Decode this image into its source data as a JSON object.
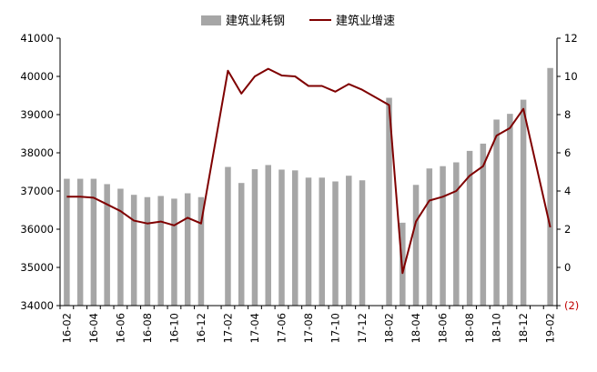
{
  "chart_data": {
    "type": "bar+line",
    "x": [
      "16-02",
      "16-03",
      "16-04",
      "16-05",
      "16-06",
      "16-07",
      "16-08",
      "16-09",
      "16-10",
      "16-11",
      "16-12",
      "17-01",
      "17-02",
      "17-03",
      "17-04",
      "17-05",
      "17-06",
      "17-07",
      "17-08",
      "17-09",
      "17-10",
      "17-11",
      "17-12",
      "18-01",
      "18-02",
      "18-03",
      "18-04",
      "18-05",
      "18-06",
      "18-07",
      "18-08",
      "18-09",
      "18-10",
      "18-11",
      "18-12",
      "19-01",
      "19-02"
    ],
    "x_tick_labels": [
      "16-02",
      "16-04",
      "16-06",
      "16-08",
      "16-10",
      "16-12",
      "17-02",
      "17-04",
      "17-06",
      "17-08",
      "17-10",
      "17-12",
      "18-02",
      "18-04",
      "18-06",
      "18-08",
      "18-10",
      "18-12",
      "19-02"
    ],
    "series": [
      {
        "name": "建筑业耗钢",
        "type": "bar",
        "axis": "left",
        "color": "#a6a6a6",
        "values": [
          37320,
          37320,
          37320,
          37180,
          37060,
          36900,
          36840,
          36870,
          36800,
          36940,
          36840,
          null,
          37630,
          37210,
          37570,
          37680,
          37560,
          37540,
          37350,
          37350,
          37250,
          37400,
          37280,
          null,
          39440,
          36170,
          37160,
          37590,
          37650,
          37750,
          38050,
          38240,
          38870,
          39020,
          39390,
          null,
          40220
        ]
      },
      {
        "name": "建筑业增速",
        "type": "line",
        "axis": "right",
        "color": "#7f0000",
        "values": [
          3.7,
          3.7,
          3.65,
          3.3,
          2.95,
          2.45,
          2.3,
          2.4,
          2.2,
          2.6,
          2.3,
          null,
          10.3,
          9.1,
          10.0,
          10.4,
          10.05,
          10.0,
          9.5,
          9.5,
          9.2,
          9.6,
          9.3,
          null,
          8.5,
          -0.3,
          2.4,
          3.5,
          3.7,
          4.0,
          4.8,
          5.3,
          6.9,
          7.3,
          8.3,
          null,
          2.1
        ]
      }
    ],
    "y_left": {
      "min": 34000,
      "max": 41000,
      "ticks": [
        "34000",
        "35000",
        "36000",
        "37000",
        "38000",
        "39000",
        "40000",
        "41000"
      ]
    },
    "y_right": {
      "min": -2,
      "max": 12,
      "ticks": [
        "(2)",
        "0",
        "2",
        "4",
        "6",
        "8",
        "10",
        "12"
      ],
      "negative_tick_color": "#c00000"
    },
    "legend_position": "top-center",
    "grid": false
  }
}
